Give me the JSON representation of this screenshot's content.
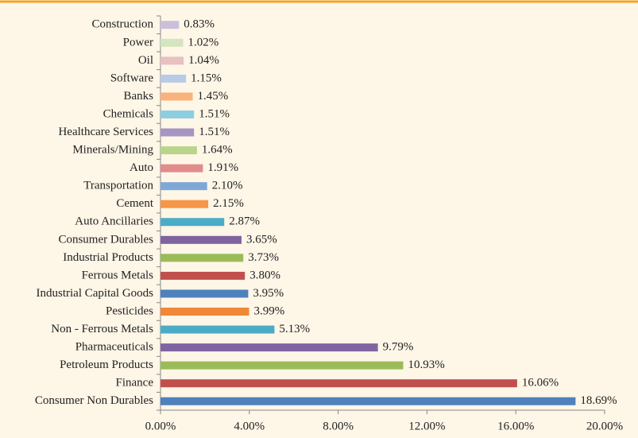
{
  "chart_data": {
    "type": "bar",
    "orientation": "horizontal",
    "categories": [
      "Construction",
      "Power",
      "Oil",
      "Software",
      "Banks",
      "Chemicals",
      "Healthcare Services",
      "Minerals/Mining",
      "Auto",
      "Transportation",
      "Cement",
      "Auto Ancillaries",
      "Consumer Durables",
      "Industrial Products",
      "Ferrous Metals",
      "Industrial Capital Goods",
      "Pesticides",
      "Non - Ferrous Metals",
      "Pharmaceuticals",
      "Petroleum Products",
      "Finance",
      "Consumer Non Durables"
    ],
    "values": [
      0.83,
      1.02,
      1.04,
      1.15,
      1.45,
      1.51,
      1.51,
      1.64,
      1.91,
      2.1,
      2.15,
      2.87,
      3.65,
      3.73,
      3.8,
      3.95,
      3.99,
      5.13,
      9.79,
      10.93,
      16.06,
      18.69
    ],
    "value_labels": [
      "0.83%",
      "1.02%",
      "1.04%",
      "1.15%",
      "1.45%",
      "1.51%",
      "1.51%",
      "1.64%",
      "1.91%",
      "2.10%",
      "2.15%",
      "2.87%",
      "3.65%",
      "3.73%",
      "3.80%",
      "3.95%",
      "3.99%",
      "5.13%",
      "9.79%",
      "10.93%",
      "16.06%",
      "18.69%"
    ],
    "colors": [
      "#c9bfdb",
      "#d5e5bf",
      "#e8c1c0",
      "#b7cae6",
      "#fab27c",
      "#8ccfe0",
      "#a695c3",
      "#b9d58a",
      "#e08c8a",
      "#7fa7d6",
      "#f79646",
      "#4bacc6",
      "#8064a2",
      "#9bbb59",
      "#c0504d",
      "#4f81bd",
      "#f08838",
      "#4bacc6",
      "#8064a2",
      "#9bbb59",
      "#c0504d",
      "#4f81bd"
    ],
    "xlim": [
      0,
      20
    ],
    "xticks": [
      {
        "value": 0,
        "label": "0.00%"
      },
      {
        "value": 4,
        "label": "4.00%"
      },
      {
        "value": 8,
        "label": "8.00%"
      },
      {
        "value": 12,
        "label": "12.00%"
      },
      {
        "value": 16,
        "label": "16.00%"
      },
      {
        "value": 20,
        "label": "20.00%"
      }
    ],
    "grid": false
  }
}
